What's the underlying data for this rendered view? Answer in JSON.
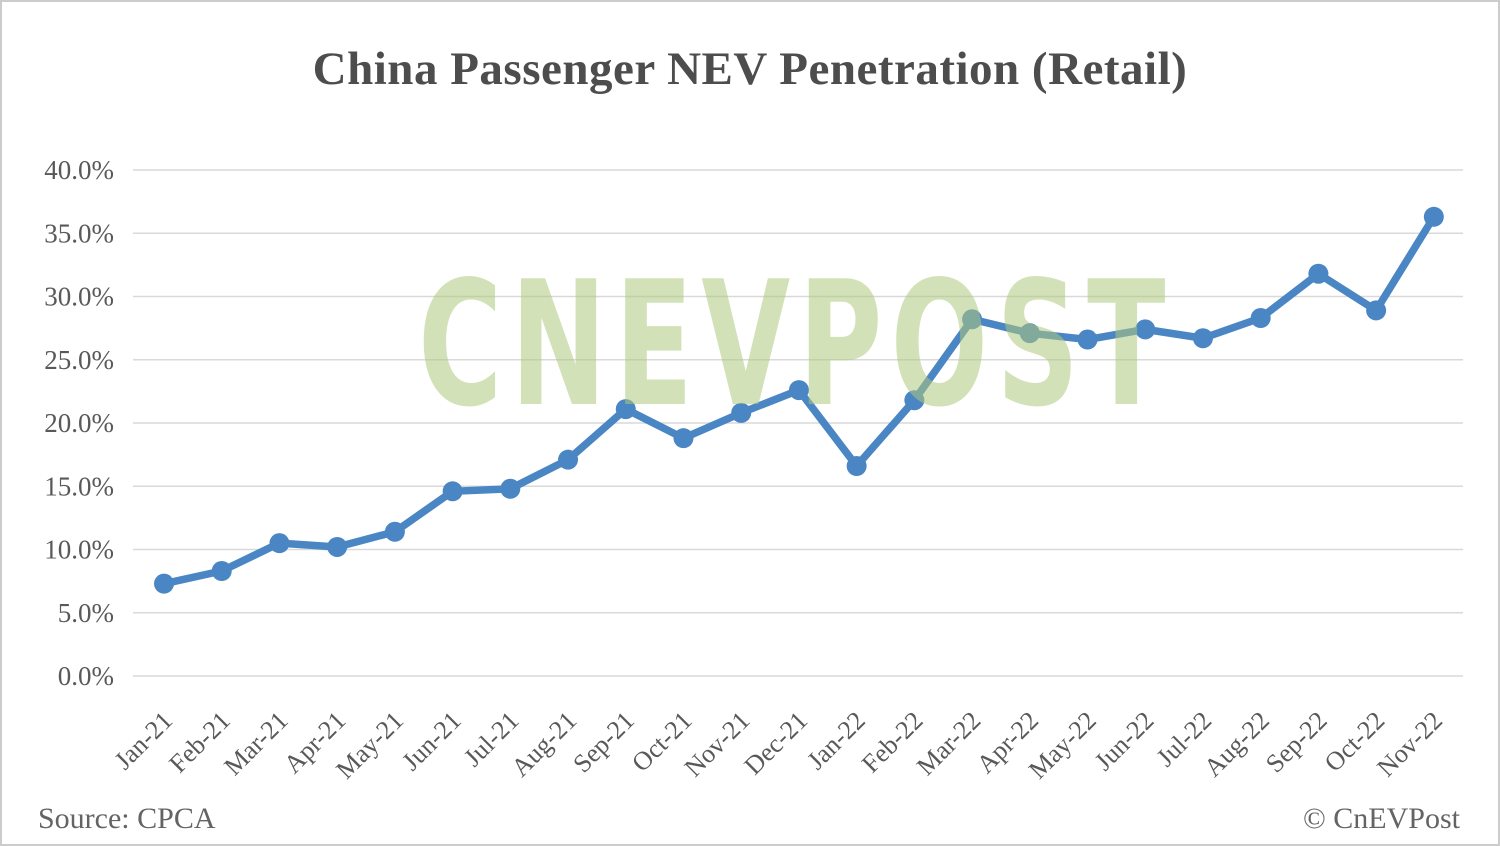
{
  "chart": {
    "title": "China Passenger NEV Penetration (Retail)"
  },
  "watermark": {
    "text": "CNEVPOST"
  },
  "footer": {
    "source": "Source: CPCA",
    "copyright": "© CnEVPost"
  },
  "chart_data": {
    "type": "line",
    "title": "China Passenger NEV Penetration (Retail)",
    "categories": [
      "Jan-21",
      "Feb-21",
      "Mar-21",
      "Apr-21",
      "May-21",
      "Jun-21",
      "Jul-21",
      "Aug-21",
      "Sep-21",
      "Oct-21",
      "Nov-21",
      "Dec-21",
      "Jan-22",
      "Feb-22",
      "Mar-22",
      "Apr-22",
      "May-22",
      "Jun-22",
      "Jul-22",
      "Aug-22",
      "Sep-22",
      "Oct-22",
      "Nov-22"
    ],
    "values": [
      7.3,
      8.3,
      10.5,
      10.2,
      11.4,
      14.6,
      14.8,
      17.1,
      21.1,
      18.8,
      20.8,
      22.6,
      16.6,
      21.8,
      28.2,
      27.1,
      26.6,
      27.4,
      26.7,
      28.3,
      31.8,
      28.9,
      36.3
    ],
    "unit": "%",
    "xlabel": "",
    "ylabel": "",
    "ylim": [
      0,
      40
    ],
    "ytick_step": 5,
    "ytick_labels": [
      "0.0%",
      "5.0%",
      "10.0%",
      "15.0%",
      "20.0%",
      "25.0%",
      "30.0%",
      "35.0%",
      "40.0%"
    ],
    "grid": true,
    "legend": false,
    "line_color": "#4a86c4",
    "marker_color": "#4a86c4",
    "gridline_color": "#d9d9d9",
    "tick_label_color": "#595959",
    "title_color": "#4d4d4d",
    "watermark_color": "#d3e1b8"
  }
}
